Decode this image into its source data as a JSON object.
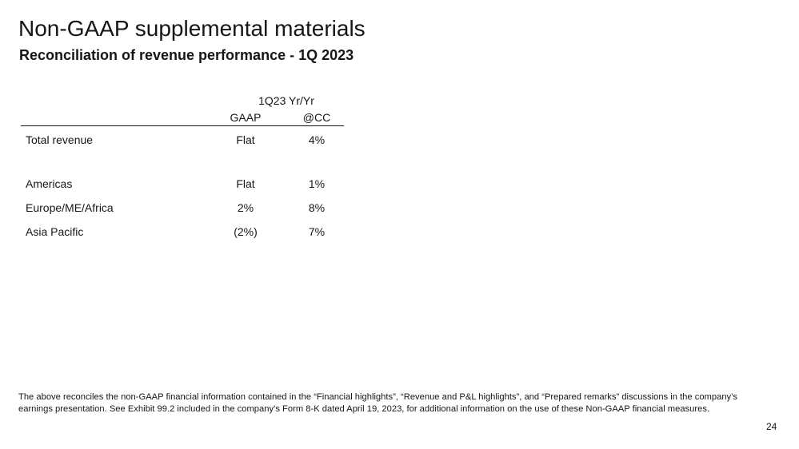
{
  "slide": {
    "title": "Non-GAAP supplemental materials",
    "subtitle": "Reconciliation of revenue performance - 1Q 2023",
    "page_number": "24"
  },
  "table": {
    "group_header": "1Q23 Yr/Yr",
    "columns": [
      "GAAP",
      "@CC"
    ],
    "rows": [
      {
        "label": "Total revenue",
        "gaap": "Flat",
        "cc": "4%"
      },
      {
        "label": "Americas",
        "gaap": "Flat",
        "cc": "1%"
      },
      {
        "label": "Europe/ME/Africa",
        "gaap": "2%",
        "cc": "8%"
      },
      {
        "label": "Asia Pacific",
        "gaap": "(2%)",
        "cc": "7%"
      }
    ]
  },
  "footnote": "The above reconciles the non-GAAP financial information contained in the “Financial highlights”, “Revenue and P&L highlights”, and “Prepared remarks” discussions in the company’s earnings presentation.  See Exhibit 99.2 included in the company’s Form 8-K dated April 19, 2023, for additional information on the use of these Non-GAAP financial measures."
}
